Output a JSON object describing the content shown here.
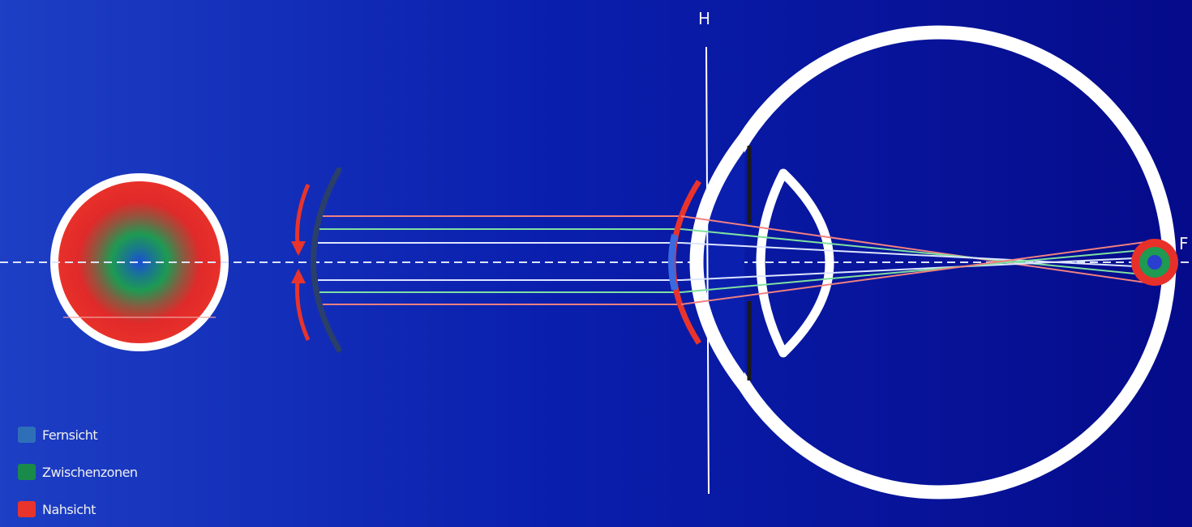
{
  "labels": {
    "principal_plane": "H",
    "focal_point": "F"
  },
  "legend": [
    {
      "label": "Fernsicht",
      "color": "#2f6fb8"
    },
    {
      "label": "Zwischenzonen",
      "color": "#1a8a4a"
    },
    {
      "label": "Nahsicht",
      "color": "#e8342c"
    }
  ],
  "colors": {
    "background": "#0a1fae",
    "eye_outline": "#ffffff",
    "near_zone": "#e02a2a",
    "intermediate_zone": "#1e9a52",
    "far_zone": "#2a5fd0",
    "lens_dark": "#1c2a48",
    "ray_red": "#f08080",
    "ray_green": "#7fe0a0",
    "ray_white": "#dde6ff"
  }
}
